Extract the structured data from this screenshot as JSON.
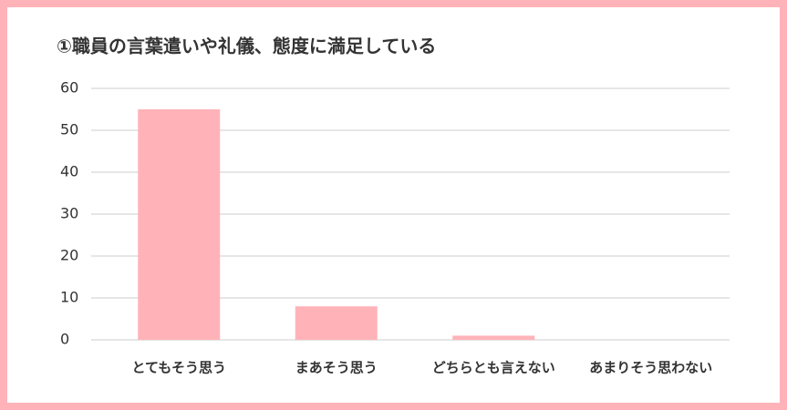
{
  "chart_data": {
    "type": "bar",
    "title": "①職員の言葉遣いや礼儀、態度に満足している",
    "categories": [
      "とてもそう思う",
      "まあそう思う",
      "どちらとも言えない",
      "あまりそう思わない"
    ],
    "values": [
      55,
      8,
      1,
      0
    ],
    "color": "#ffb3b8",
    "ylim": [
      0,
      60
    ],
    "yticks": [
      0,
      10,
      20,
      30,
      40,
      50,
      60
    ],
    "grid": true
  }
}
